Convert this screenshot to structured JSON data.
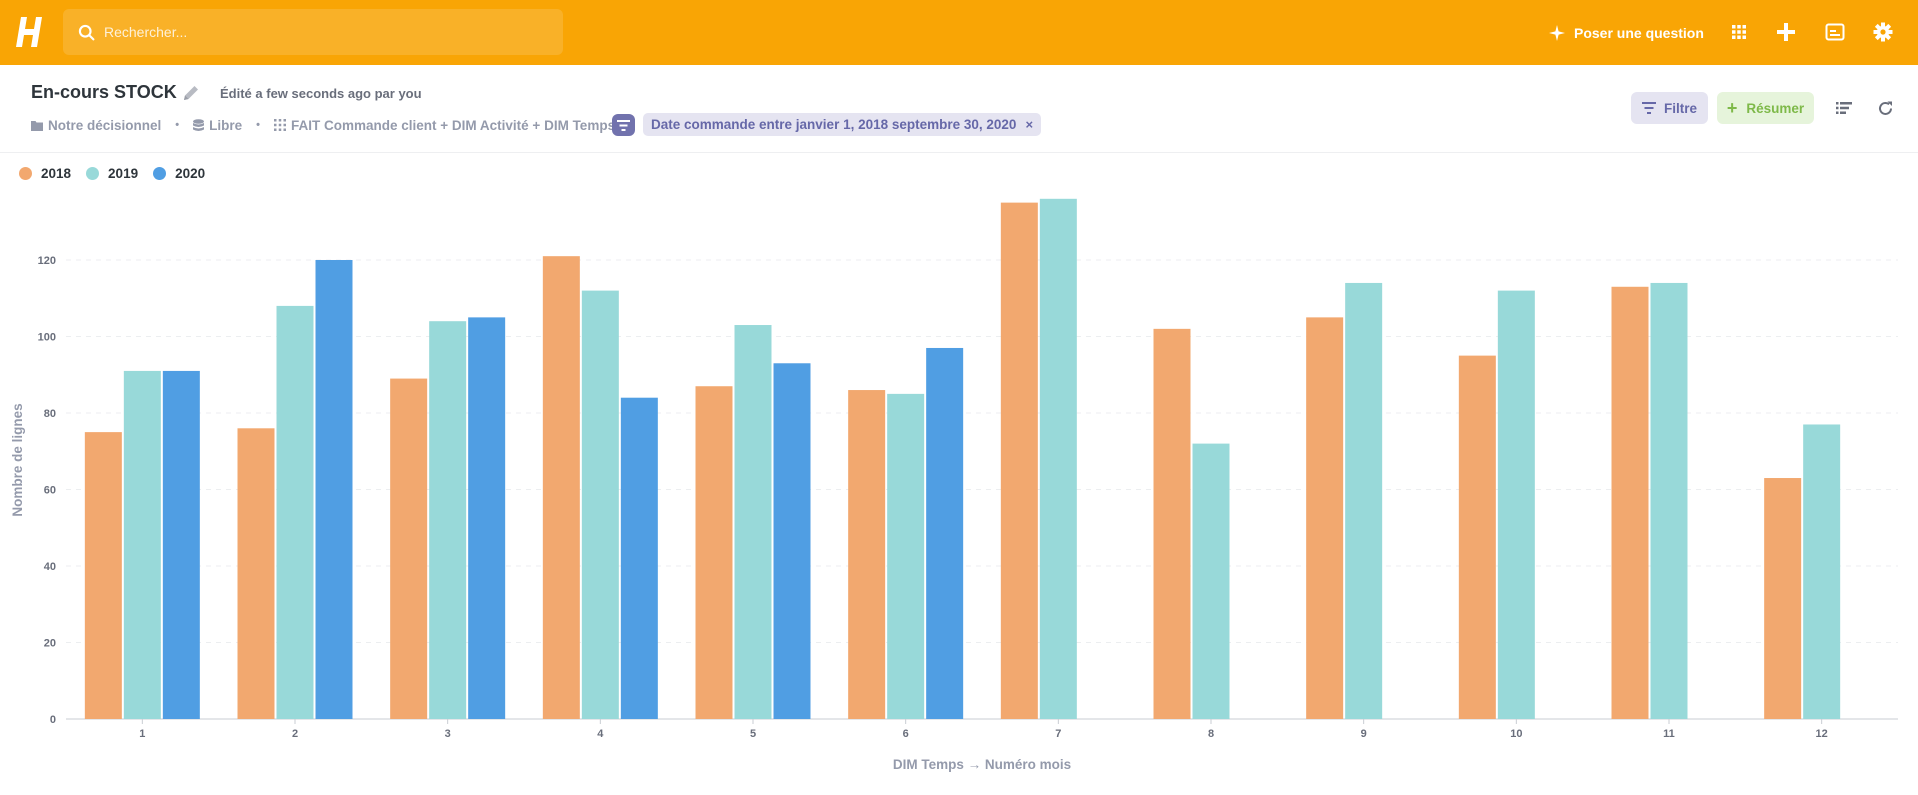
{
  "topbar": {
    "search_placeholder": "Rechercher...",
    "ask_label": "Poser une question",
    "icons": [
      "apps-grid-icon",
      "plus-icon",
      "browse-data-icon",
      "gear-icon"
    ],
    "color": "#f9a505"
  },
  "header": {
    "title": "En-cours STOCK",
    "edited": "Édité a few seconds ago par you",
    "breadcrumbs": {
      "collection": "Notre décisionnel",
      "database": "Libre",
      "table": "FAIT Commande client + DIM Activité + DIM Temps"
    },
    "filter_chip": "Date commande entre janvier 1, 2018 septembre 30, 2020",
    "filter_chip_close": "×",
    "filter_button": "Filtre",
    "summarize_button": "Résumer"
  },
  "colors": {
    "2018": "#f2a86f",
    "2019": "#98d9d9",
    "2020": "#509ee3"
  },
  "chart_data": {
    "type": "bar",
    "title": "",
    "xlabel": "DIM Temps → Numéro mois",
    "ylabel": "Nombre de lignes",
    "categories": [
      "1",
      "2",
      "3",
      "4",
      "5",
      "6",
      "7",
      "8",
      "9",
      "10",
      "11",
      "12"
    ],
    "ylim": [
      0,
      140
    ],
    "yticks": [
      0,
      20,
      40,
      60,
      80,
      100,
      120
    ],
    "legend_position": "top-left",
    "series": [
      {
        "name": "2018",
        "values": [
          75,
          76,
          89,
          121,
          87,
          86,
          135,
          102,
          105,
          95,
          113,
          63
        ]
      },
      {
        "name": "2019",
        "values": [
          91,
          108,
          104,
          112,
          103,
          85,
          136,
          72,
          114,
          112,
          114,
          77
        ]
      },
      {
        "name": "2020",
        "values": [
          91,
          120,
          105,
          84,
          93,
          97,
          null,
          null,
          null,
          null,
          null,
          null
        ]
      }
    ]
  }
}
